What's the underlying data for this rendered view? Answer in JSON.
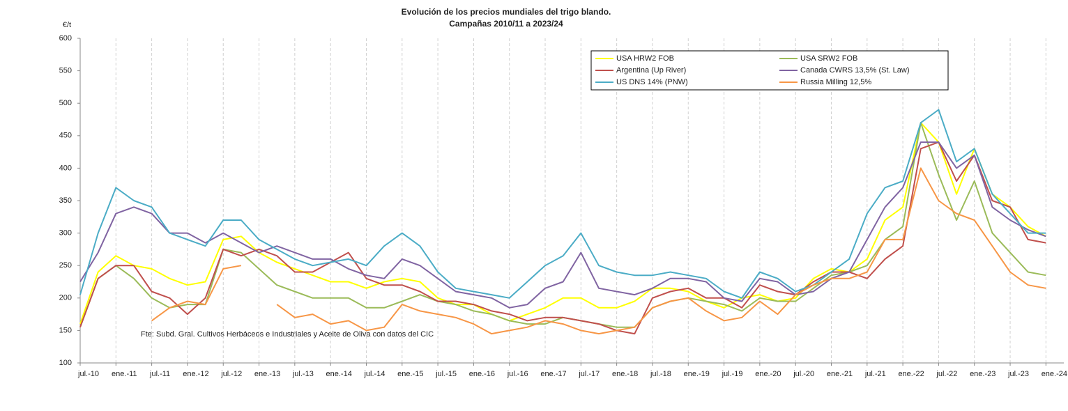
{
  "chart_data": {
    "type": "line",
    "title": [
      "Evolución de los precios mundiales del trigo blando.",
      "Campañas 2010/11 a 2023/24"
    ],
    "y_label": "€/t",
    "annotation": "Fte: Subd. Gral. Cultivos Herbáceos e Industriales y Aceite de Oliva con datos del CIC",
    "categories": [
      "jul.-10",
      null,
      "ene.-11",
      null,
      "jul.-11",
      null,
      "ene.-12",
      null,
      "jul.-12",
      null,
      "ene.-13",
      null,
      "jul.-13",
      null,
      "ene.-14",
      null,
      "jul.-14",
      null,
      "ene.-15",
      null,
      "jul.-15",
      null,
      "ene.-16",
      null,
      "jul.-16",
      null,
      "ene.-17",
      null,
      "jul.-17",
      null,
      "ene.-18",
      null,
      "jul.-18",
      null,
      "ene.-19",
      null,
      "jul.-19",
      null,
      "ene.-20",
      null,
      "jul.-20",
      null,
      "ene.-21",
      null,
      "jul.-21",
      null,
      "ene.-22",
      null,
      "jul.-22",
      null,
      "ene.-23",
      null,
      "jul.-23",
      null,
      "ene.-24",
      null
    ],
    "ylim": [
      100,
      600
    ],
    "yticks": [
      100,
      150,
      200,
      250,
      300,
      350,
      400,
      450,
      500,
      550,
      600
    ],
    "grid": "x",
    "legend": "top-right",
    "series": [
      {
        "name": "USA HRW2 FOB",
        "color": "#ffff00",
        "values": [
          160,
          240,
          265,
          250,
          245,
          230,
          220,
          225,
          290,
          295,
          270,
          255,
          245,
          235,
          225,
          225,
          215,
          225,
          230,
          225,
          200,
          190,
          190,
          175,
          165,
          175,
          185,
          200,
          200,
          185,
          185,
          195,
          215,
          215,
          210,
          195,
          185,
          200,
          205,
          195,
          200,
          230,
          245,
          240,
          260,
          320,
          340,
          470,
          440,
          360,
          430,
          360,
          340,
          310,
          295,
          null
        ]
      },
      {
        "name": "USA SRW2 FOB",
        "color": "#9bbb59",
        "values": [
          155,
          230,
          250,
          230,
          200,
          185,
          190,
          190,
          275,
          270,
          245,
          220,
          210,
          200,
          200,
          200,
          185,
          185,
          195,
          205,
          195,
          190,
          180,
          175,
          165,
          160,
          160,
          170,
          165,
          160,
          155,
          155,
          185,
          195,
          200,
          195,
          190,
          180,
          200,
          195,
          195,
          215,
          235,
          240,
          250,
          290,
          310,
          470,
          390,
          320,
          380,
          300,
          270,
          240,
          235,
          null
        ]
      },
      {
        "name": "Argentina (Up River)",
        "color": "#c0504d",
        "values": [
          155,
          230,
          250,
          250,
          210,
          200,
          175,
          200,
          275,
          265,
          275,
          265,
          240,
          240,
          255,
          270,
          230,
          220,
          220,
          210,
          195,
          195,
          190,
          180,
          175,
          165,
          170,
          170,
          165,
          160,
          150,
          145,
          200,
          210,
          215,
          200,
          200,
          185,
          220,
          210,
          205,
          225,
          240,
          240,
          230,
          260,
          280,
          430,
          440,
          380,
          420,
          350,
          340,
          290,
          285,
          null
        ]
      },
      {
        "name": "Canada CWRS 13,5% (St. Law)",
        "color": "#8064a2",
        "values": [
          225,
          270,
          330,
          340,
          330,
          300,
          300,
          285,
          300,
          285,
          270,
          280,
          270,
          260,
          260,
          245,
          235,
          230,
          260,
          250,
          230,
          210,
          205,
          200,
          185,
          190,
          215,
          225,
          270,
          215,
          210,
          205,
          215,
          230,
          230,
          225,
          200,
          195,
          230,
          225,
          205,
          210,
          230,
          240,
          290,
          340,
          370,
          440,
          440,
          400,
          420,
          340,
          320,
          305,
          295,
          null
        ]
      },
      {
        "name": "US DNS 14% (PNW)",
        "color": "#4bacc6",
        "values": [
          205,
          300,
          370,
          350,
          340,
          300,
          290,
          280,
          320,
          320,
          290,
          275,
          260,
          250,
          255,
          260,
          250,
          280,
          300,
          280,
          240,
          215,
          210,
          205,
          200,
          225,
          250,
          265,
          300,
          250,
          240,
          235,
          235,
          240,
          235,
          230,
          210,
          200,
          240,
          230,
          210,
          220,
          240,
          260,
          330,
          370,
          380,
          470,
          490,
          410,
          430,
          360,
          330,
          300,
          300,
          null
        ]
      },
      {
        "name": "Russia Milling 12,5%",
        "color": "#f79646",
        "values": [
          null,
          null,
          null,
          null,
          165,
          185,
          195,
          190,
          245,
          250,
          null,
          190,
          170,
          175,
          160,
          165,
          150,
          155,
          190,
          180,
          175,
          170,
          160,
          145,
          150,
          155,
          165,
          160,
          150,
          145,
          150,
          155,
          185,
          195,
          200,
          180,
          165,
          170,
          195,
          175,
          205,
          220,
          230,
          230,
          240,
          290,
          290,
          400,
          350,
          330,
          320,
          280,
          240,
          220,
          215,
          null
        ]
      }
    ]
  }
}
